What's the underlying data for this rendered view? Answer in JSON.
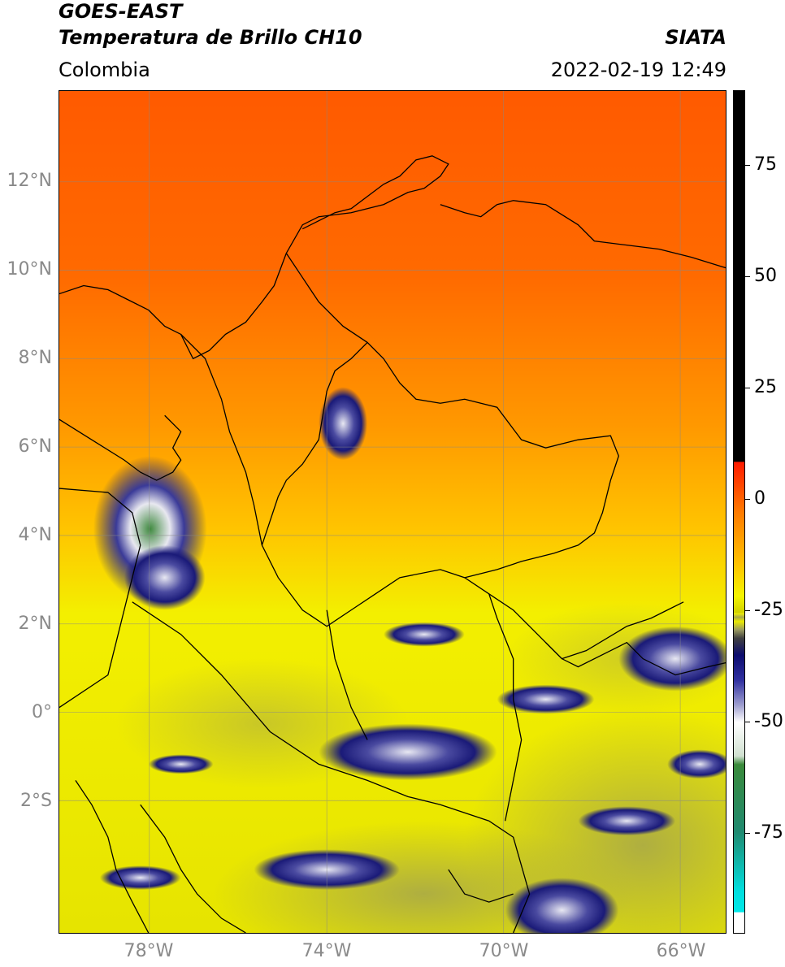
{
  "header": {
    "title_line1": "GOES-EAST",
    "title_line2": "Temperatura de Brillo CH10",
    "brand": "SIATA",
    "region": "Colombia",
    "datetime": "2022-02-19 12:49"
  },
  "map": {
    "lat_labels": [
      "12°N",
      "10°N",
      "8°N",
      "6°N",
      "4°N",
      "2°N",
      "0°",
      "2°S"
    ],
    "lon_labels": [
      "78°W",
      "74°W",
      "70°W",
      "66°W"
    ]
  },
  "colorbar": {
    "ticks": [
      "75",
      "50",
      "25",
      "0",
      "-25",
      "-50",
      "-75"
    ],
    "colors": {
      "black": "#000000",
      "red": "#ff2200",
      "orange": "#ff8800",
      "yellow": "#f5f500",
      "olive": "#a8a840",
      "navy": "#101070",
      "white": "#ffffff",
      "green": "#3a8a3a",
      "cyan": "#00e0e0"
    }
  }
}
